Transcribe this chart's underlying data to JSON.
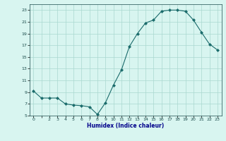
{
  "x": [
    0,
    1,
    2,
    3,
    4,
    5,
    6,
    7,
    8,
    9,
    10,
    11,
    12,
    13,
    14,
    15,
    16,
    17,
    18,
    19,
    20,
    21,
    22,
    23
  ],
  "y": [
    9.2,
    8.0,
    8.0,
    8.0,
    7.0,
    6.8,
    6.7,
    6.5,
    5.2,
    7.2,
    10.2,
    12.8,
    16.8,
    19.0,
    20.8,
    21.3,
    22.8,
    23.0,
    23.0,
    22.8,
    21.3,
    19.2,
    17.2,
    16.2
  ],
  "title": "",
  "xlabel": "Humidex (Indice chaleur)",
  "ylabel": "",
  "bg_color": "#d8f5f0",
  "line_color": "#1a6b6b",
  "marker_color": "#1a6b6b",
  "grid_color": "#aad8d0",
  "tick_label_color": "#1a4a4a",
  "xlabel_color": "#00008b",
  "ylim": [
    5,
    24
  ],
  "xlim": [
    -0.5,
    23.5
  ],
  "yticks": [
    5,
    7,
    9,
    11,
    13,
    15,
    17,
    19,
    21,
    23
  ],
  "xtick_labels": [
    "0",
    "",
    "2",
    "3",
    "4",
    "5",
    "6",
    "7",
    "8",
    "9",
    "10",
    "11",
    "12",
    "13",
    "14",
    "15",
    "16",
    "17",
    "18",
    "19",
    "20",
    "21",
    "22",
    "23"
  ]
}
